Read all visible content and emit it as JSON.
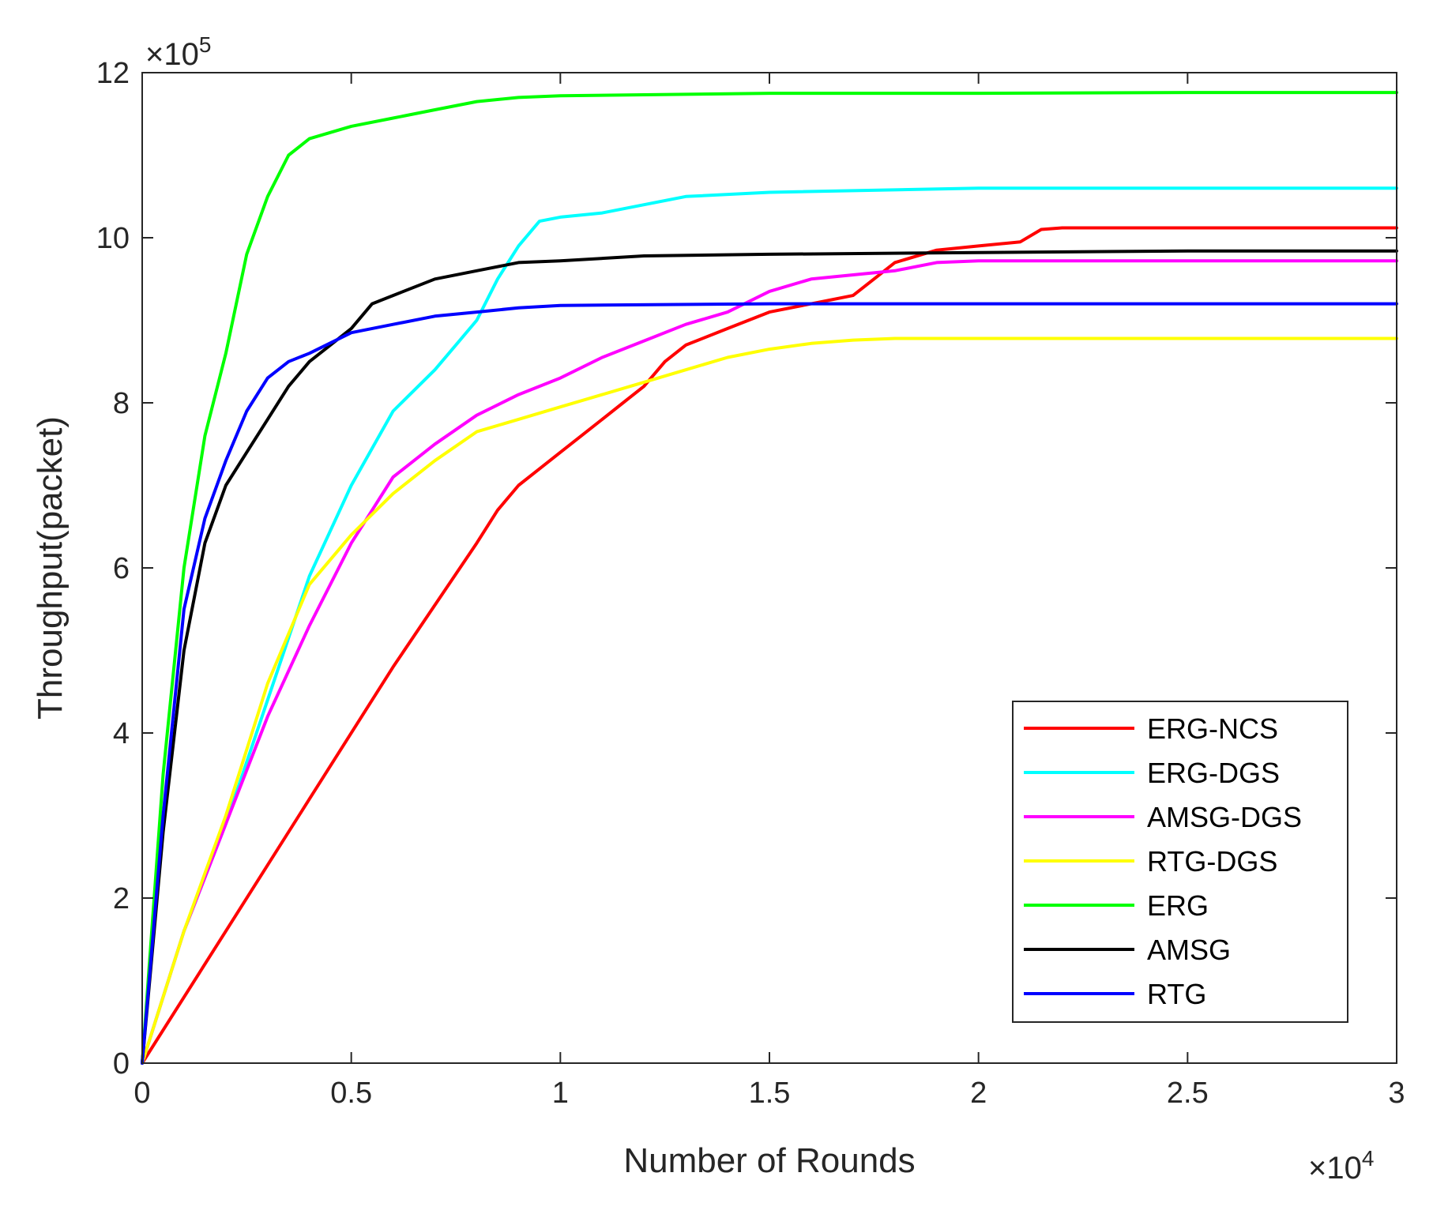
{
  "chart_data": {
    "type": "line",
    "title": "",
    "xlabel": "Number of Rounds",
    "ylabel": "Throughput(packet)",
    "xlim": [
      0,
      3
    ],
    "ylim": [
      0,
      12
    ],
    "x_multiplier": {
      "base": "×10",
      "exponent": "4"
    },
    "y_multiplier": {
      "base": "×10",
      "exponent": "5"
    },
    "xticks": [
      0,
      0.5,
      1,
      1.5,
      2,
      2.5,
      3
    ],
    "xtick_labels": [
      "0",
      "0.5",
      "1",
      "1.5",
      "2",
      "2.5",
      "3"
    ],
    "yticks": [
      0,
      2,
      4,
      6,
      8,
      10,
      12
    ],
    "ytick_labels": [
      "0",
      "2",
      "4",
      "6",
      "8",
      "10",
      "12"
    ],
    "grid": false,
    "legend_position": "bottom-right",
    "series": [
      {
        "name": "ERG-NCS",
        "color": "#ff0000",
        "x": [
          0,
          0.2,
          0.4,
          0.6,
          0.8,
          0.85,
          0.9,
          0.95,
          1.0,
          1.05,
          1.1,
          1.15,
          1.2,
          1.25,
          1.3,
          1.4,
          1.5,
          1.6,
          1.7,
          1.75,
          1.8,
          1.9,
          2.0,
          2.1,
          2.15,
          2.2,
          2.3,
          2.5,
          3.0
        ],
        "y": [
          0,
          1.6,
          3.2,
          4.8,
          6.3,
          6.7,
          7.0,
          7.2,
          7.4,
          7.6,
          7.8,
          8.0,
          8.2,
          8.5,
          8.7,
          8.9,
          9.1,
          9.2,
          9.3,
          9.5,
          9.7,
          9.85,
          9.9,
          9.95,
          10.1,
          10.12,
          10.12,
          10.12,
          10.12
        ]
      },
      {
        "name": "ERG-DGS",
        "color": "#00ffff",
        "x": [
          0,
          0.1,
          0.2,
          0.3,
          0.4,
          0.5,
          0.6,
          0.7,
          0.75,
          0.8,
          0.85,
          0.9,
          0.95,
          1.0,
          1.1,
          1.2,
          1.3,
          1.5,
          2.0,
          2.5,
          3.0
        ],
        "y": [
          0,
          1.6,
          2.9,
          4.4,
          5.9,
          7.0,
          7.9,
          8.4,
          8.7,
          9.0,
          9.5,
          9.9,
          10.2,
          10.25,
          10.3,
          10.4,
          10.5,
          10.55,
          10.6,
          10.6,
          10.6
        ]
      },
      {
        "name": "AMSG-DGS",
        "color": "#ff00ff",
        "x": [
          0,
          0.1,
          0.2,
          0.3,
          0.4,
          0.5,
          0.6,
          0.7,
          0.8,
          0.9,
          1.0,
          1.1,
          1.2,
          1.3,
          1.4,
          1.5,
          1.6,
          1.7,
          1.8,
          1.9,
          2.0,
          2.5,
          3.0
        ],
        "y": [
          0,
          1.6,
          2.9,
          4.2,
          5.3,
          6.3,
          7.1,
          7.5,
          7.85,
          8.1,
          8.3,
          8.55,
          8.75,
          8.95,
          9.1,
          9.35,
          9.5,
          9.55,
          9.6,
          9.7,
          9.72,
          9.72,
          9.72
        ]
      },
      {
        "name": "RTG-DGS",
        "color": "#ffff00",
        "x": [
          0,
          0.1,
          0.2,
          0.3,
          0.4,
          0.5,
          0.6,
          0.7,
          0.8,
          0.9,
          1.0,
          1.1,
          1.2,
          1.3,
          1.4,
          1.5,
          1.6,
          1.7,
          1.8,
          2.0,
          2.5,
          3.0
        ],
        "y": [
          0,
          1.6,
          3.0,
          4.6,
          5.8,
          6.4,
          6.9,
          7.3,
          7.65,
          7.8,
          7.95,
          8.1,
          8.25,
          8.4,
          8.55,
          8.65,
          8.72,
          8.76,
          8.78,
          8.78,
          8.78,
          8.78
        ]
      },
      {
        "name": "ERG",
        "color": "#00ff00",
        "x": [
          0,
          0.05,
          0.1,
          0.15,
          0.2,
          0.25,
          0.3,
          0.35,
          0.4,
          0.5,
          0.6,
          0.7,
          0.8,
          0.9,
          1.0,
          1.5,
          2.0,
          2.5,
          3.0
        ],
        "y": [
          0,
          3.5,
          6.0,
          7.6,
          8.6,
          9.8,
          10.5,
          11.0,
          11.2,
          11.35,
          11.45,
          11.55,
          11.65,
          11.7,
          11.72,
          11.75,
          11.75,
          11.76,
          11.76
        ]
      },
      {
        "name": "AMSG",
        "color": "#000000",
        "x": [
          0,
          0.05,
          0.1,
          0.15,
          0.2,
          0.25,
          0.3,
          0.35,
          0.4,
          0.45,
          0.5,
          0.55,
          0.6,
          0.7,
          0.8,
          0.9,
          1.0,
          1.2,
          1.5,
          2.0,
          2.5,
          3.0
        ],
        "y": [
          0,
          2.8,
          5.0,
          6.3,
          7.0,
          7.4,
          7.8,
          8.2,
          8.5,
          8.7,
          8.9,
          9.2,
          9.3,
          9.5,
          9.6,
          9.7,
          9.72,
          9.78,
          9.8,
          9.82,
          9.84,
          9.84
        ]
      },
      {
        "name": "RTG",
        "color": "#0000ff",
        "x": [
          0,
          0.05,
          0.1,
          0.15,
          0.2,
          0.25,
          0.3,
          0.35,
          0.4,
          0.5,
          0.6,
          0.7,
          0.8,
          0.9,
          1.0,
          1.5,
          2.0,
          3.0
        ],
        "y": [
          0,
          3.0,
          5.5,
          6.6,
          7.3,
          7.9,
          8.3,
          8.5,
          8.6,
          8.85,
          8.95,
          9.05,
          9.1,
          9.15,
          9.18,
          9.2,
          9.2,
          9.2
        ]
      }
    ]
  }
}
